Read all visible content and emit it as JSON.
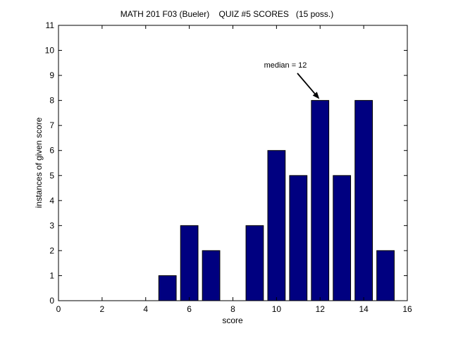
{
  "chart_data": {
    "type": "bar",
    "title": "MATH 201 F03 (Bueler)    QUIZ #5 SCORES   (15 poss.)",
    "xlabel": "score",
    "ylabel": "instances of given score",
    "xlim": [
      0,
      16
    ],
    "ylim": [
      0,
      11
    ],
    "xticks": [
      0,
      2,
      4,
      6,
      8,
      10,
      12,
      14,
      16
    ],
    "yticks": [
      0,
      1,
      2,
      3,
      4,
      5,
      6,
      7,
      8,
      9,
      10,
      11
    ],
    "x": [
      5,
      6,
      7,
      9,
      10,
      11,
      12,
      13,
      14,
      15
    ],
    "values": [
      1,
      3,
      2,
      3,
      6,
      5,
      8,
      5,
      8,
      2
    ],
    "bar_color": "#000080",
    "grid": false,
    "annotation": {
      "text": "median = 12",
      "x": 12,
      "y": 8
    }
  }
}
